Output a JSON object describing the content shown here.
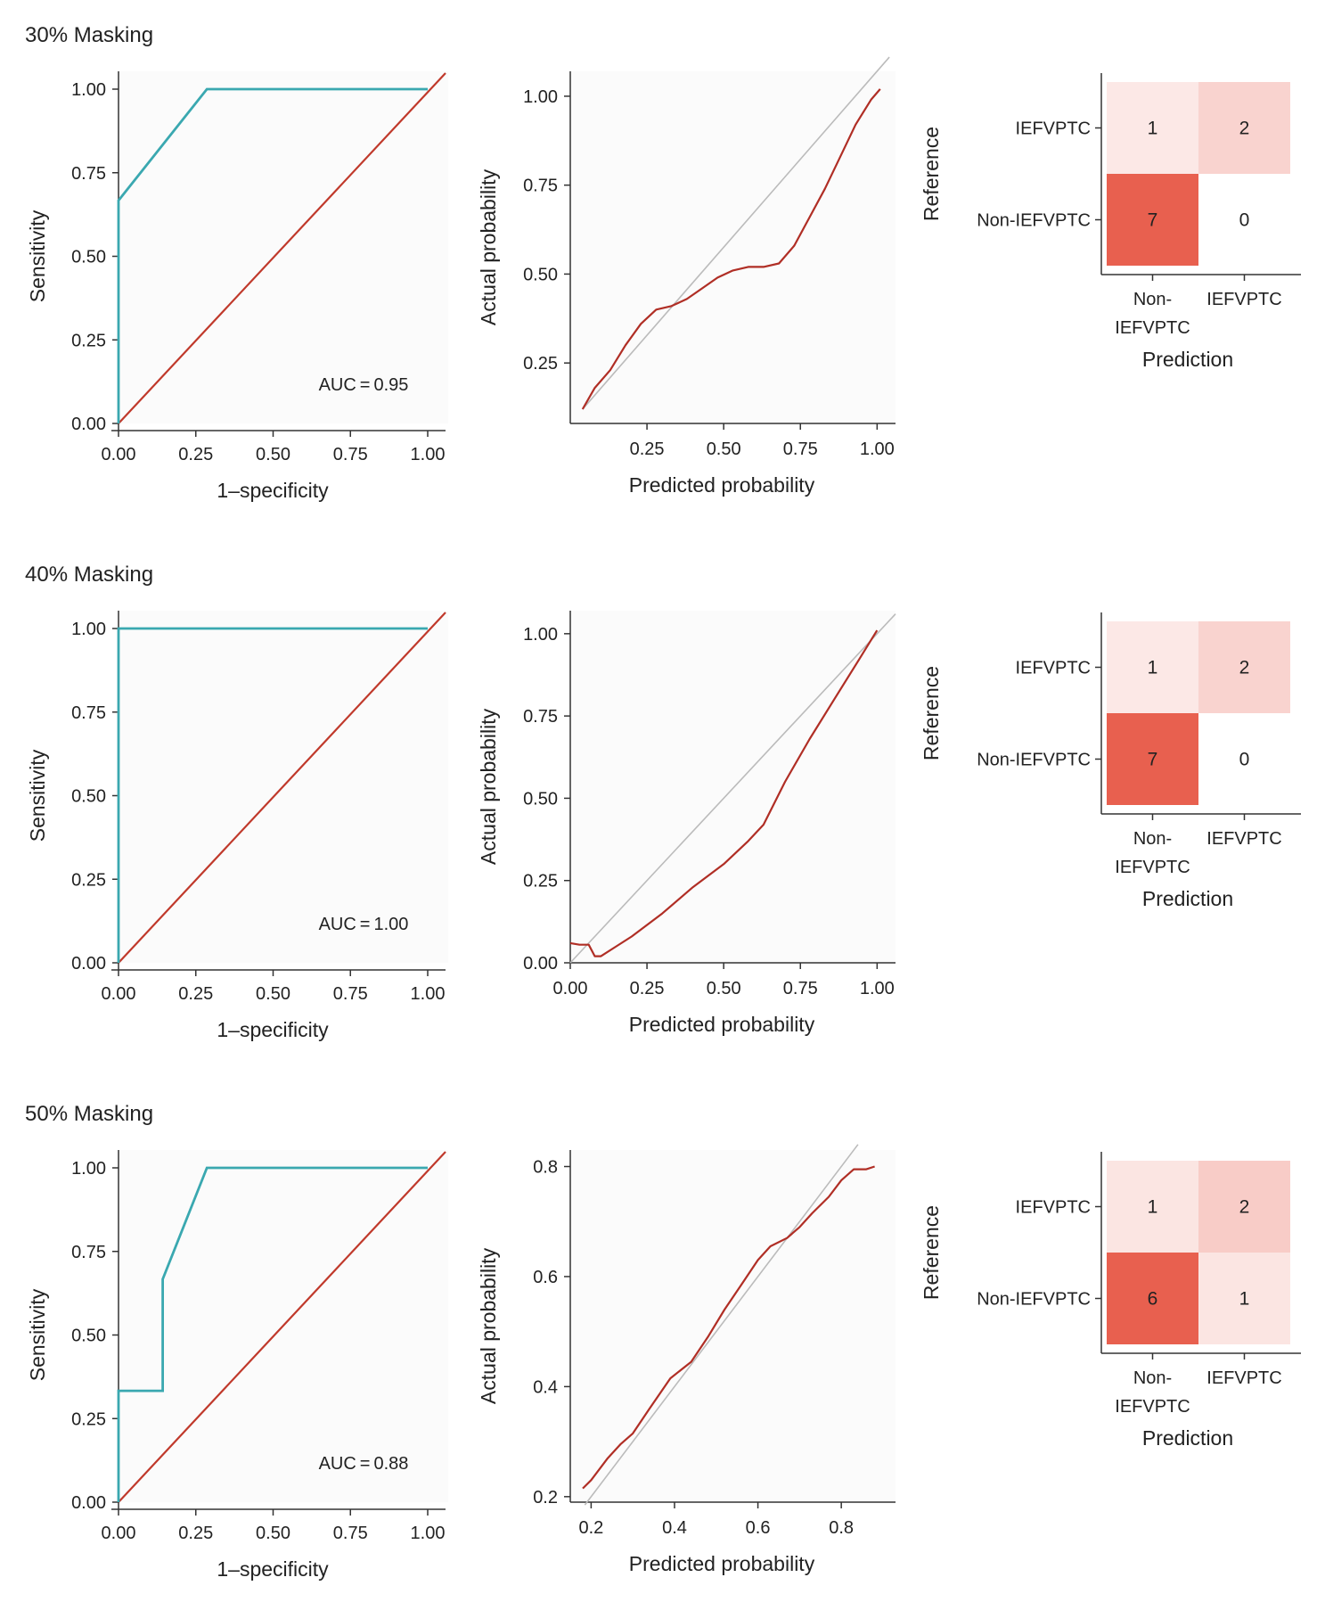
{
  "colors": {
    "roc_curve": "#3aa8b0",
    "diagonal": "#c0392b",
    "calibration_curve": "#b02e25",
    "ideal_line": "#bbbbbb",
    "cm_low": "#fbe4e0",
    "cm_high": "#e8604f"
  },
  "chart_data": [
    {
      "section": "30% Masking",
      "roc": {
        "type": "line",
        "xlabel": "1–specificity",
        "ylabel": "Sensitivity",
        "xlim": [
          0,
          1
        ],
        "ylim": [
          0,
          1
        ],
        "ticks": [
          "0.00",
          "0.25",
          "0.50",
          "0.75",
          "1.00"
        ],
        "x": [
          0,
          0,
          0.286,
          1.0
        ],
        "y": [
          0,
          0.667,
          1.0,
          1.0
        ],
        "auc_label": "AUC = 0.95"
      },
      "calibration": {
        "type": "line",
        "xlabel": "Predicted probability",
        "ylabel": "Actual probability",
        "xlim": [
          0.0,
          1.06
        ],
        "ylim": [
          0.08,
          1.07
        ],
        "xticks": [
          0.25,
          0.5,
          0.75,
          1.0
        ],
        "xtick_labels": [
          "0.25",
          "0.50",
          "0.75",
          "1.00"
        ],
        "yticks": [
          0.25,
          0.5,
          0.75,
          1.0
        ],
        "ytick_labels": [
          "0.25",
          "0.50",
          "0.75",
          "1.00"
        ],
        "x": [
          0.04,
          0.08,
          0.13,
          0.18,
          0.23,
          0.28,
          0.33,
          0.38,
          0.43,
          0.48,
          0.53,
          0.58,
          0.63,
          0.68,
          0.73,
          0.78,
          0.83,
          0.88,
          0.93,
          0.98,
          1.01
        ],
        "y": [
          0.12,
          0.18,
          0.23,
          0.3,
          0.36,
          0.4,
          0.41,
          0.43,
          0.46,
          0.49,
          0.51,
          0.52,
          0.52,
          0.53,
          0.58,
          0.66,
          0.74,
          0.83,
          0.92,
          0.99,
          1.02
        ],
        "ideal": [
          [
            0.04,
            0.12
          ],
          [
            1.04,
            1.11
          ]
        ]
      },
      "confusion": {
        "type": "heatmap",
        "ylabel": "Reference",
        "xlabel": "Prediction",
        "row_labels": [
          "IEFVPTC",
          "Non-IEFVPTC"
        ],
        "col_labels": [
          [
            "Non-",
            "IEFVPTC"
          ],
          [
            "IEFVPTC"
          ]
        ],
        "values": [
          [
            1,
            2
          ],
          [
            7,
            0
          ]
        ]
      }
    },
    {
      "section": "40% Masking",
      "roc": {
        "type": "line",
        "xlabel": "1–specificity",
        "ylabel": "Sensitivity",
        "xlim": [
          0,
          1
        ],
        "ylim": [
          0,
          1
        ],
        "ticks": [
          "0.00",
          "0.25",
          "0.50",
          "0.75",
          "1.00"
        ],
        "x": [
          0,
          0,
          1.0
        ],
        "y": [
          0,
          1.0,
          1.0
        ],
        "auc_label": "AUC = 1.00"
      },
      "calibration": {
        "type": "line",
        "xlabel": "Predicted probability",
        "ylabel": "Actual probability",
        "xlim": [
          0.0,
          1.06
        ],
        "ylim": [
          0.0,
          1.07
        ],
        "xticks": [
          0.0,
          0.25,
          0.5,
          0.75,
          1.0
        ],
        "xtick_labels": [
          "0.00",
          "0.25",
          "0.50",
          "0.75",
          "1.00"
        ],
        "yticks": [
          0.0,
          0.25,
          0.5,
          0.75,
          1.0
        ],
        "ytick_labels": [
          "0.00",
          "0.25",
          "0.50",
          "0.75",
          "1.00"
        ],
        "x": [
          0.0,
          0.03,
          0.06,
          0.08,
          0.1,
          0.15,
          0.2,
          0.3,
          0.4,
          0.5,
          0.58,
          0.63,
          0.7,
          0.78,
          0.86,
          0.94,
          1.0
        ],
        "y": [
          0.06,
          0.055,
          0.055,
          0.02,
          0.02,
          0.05,
          0.08,
          0.15,
          0.23,
          0.3,
          0.37,
          0.42,
          0.55,
          0.68,
          0.8,
          0.92,
          1.01
        ],
        "ideal": [
          [
            0.0,
            0.0
          ],
          [
            1.06,
            1.06
          ]
        ]
      },
      "confusion": {
        "type": "heatmap",
        "ylabel": "Reference",
        "xlabel": "Prediction",
        "row_labels": [
          "IEFVPTC",
          "Non-IEFVPTC"
        ],
        "col_labels": [
          [
            "Non-",
            "IEFVPTC"
          ],
          [
            "IEFVPTC"
          ]
        ],
        "values": [
          [
            1,
            2
          ],
          [
            7,
            0
          ]
        ]
      }
    },
    {
      "section": "50% Masking",
      "roc": {
        "type": "line",
        "xlabel": "1–specificity",
        "ylabel": "Sensitivity",
        "xlim": [
          0,
          1
        ],
        "ylim": [
          0,
          1
        ],
        "ticks": [
          "0.00",
          "0.25",
          "0.50",
          "0.75",
          "1.00"
        ],
        "x": [
          0,
          0,
          0.143,
          0.143,
          0.286,
          1.0
        ],
        "y": [
          0,
          0.333,
          0.333,
          0.667,
          1.0,
          1.0
        ],
        "auc_label": "AUC = 0.88"
      },
      "calibration": {
        "type": "line",
        "xlabel": "Predicted probability",
        "ylabel": "Actual probability",
        "xlim": [
          0.15,
          0.93
        ],
        "ylim": [
          0.19,
          0.83
        ],
        "xticks": [
          0.2,
          0.4,
          0.6,
          0.8
        ],
        "xtick_labels": [
          "0.2",
          "0.4",
          "0.6",
          "0.8"
        ],
        "yticks": [
          0.2,
          0.4,
          0.6,
          0.8
        ],
        "ytick_labels": [
          "0.2",
          "0.4",
          "0.6",
          "0.8"
        ],
        "x": [
          0.18,
          0.2,
          0.24,
          0.27,
          0.3,
          0.34,
          0.39,
          0.44,
          0.48,
          0.52,
          0.56,
          0.6,
          0.63,
          0.67,
          0.7,
          0.73,
          0.77,
          0.8,
          0.83,
          0.86,
          0.88
        ],
        "y": [
          0.215,
          0.23,
          0.27,
          0.295,
          0.315,
          0.36,
          0.415,
          0.445,
          0.49,
          0.54,
          0.585,
          0.63,
          0.655,
          0.67,
          0.69,
          0.715,
          0.745,
          0.775,
          0.795,
          0.795,
          0.8
        ],
        "ideal": [
          [
            0.185,
            0.185
          ],
          [
            0.84,
            0.84
          ]
        ]
      },
      "confusion": {
        "type": "heatmap",
        "ylabel": "Reference",
        "xlabel": "Prediction",
        "row_labels": [
          "IEFVPTC",
          "Non-IEFVPTC"
        ],
        "col_labels": [
          [
            "Non-",
            "IEFVPTC"
          ],
          [
            "IEFVPTC"
          ]
        ],
        "values": [
          [
            1,
            2
          ],
          [
            6,
            1
          ]
        ]
      }
    }
  ]
}
